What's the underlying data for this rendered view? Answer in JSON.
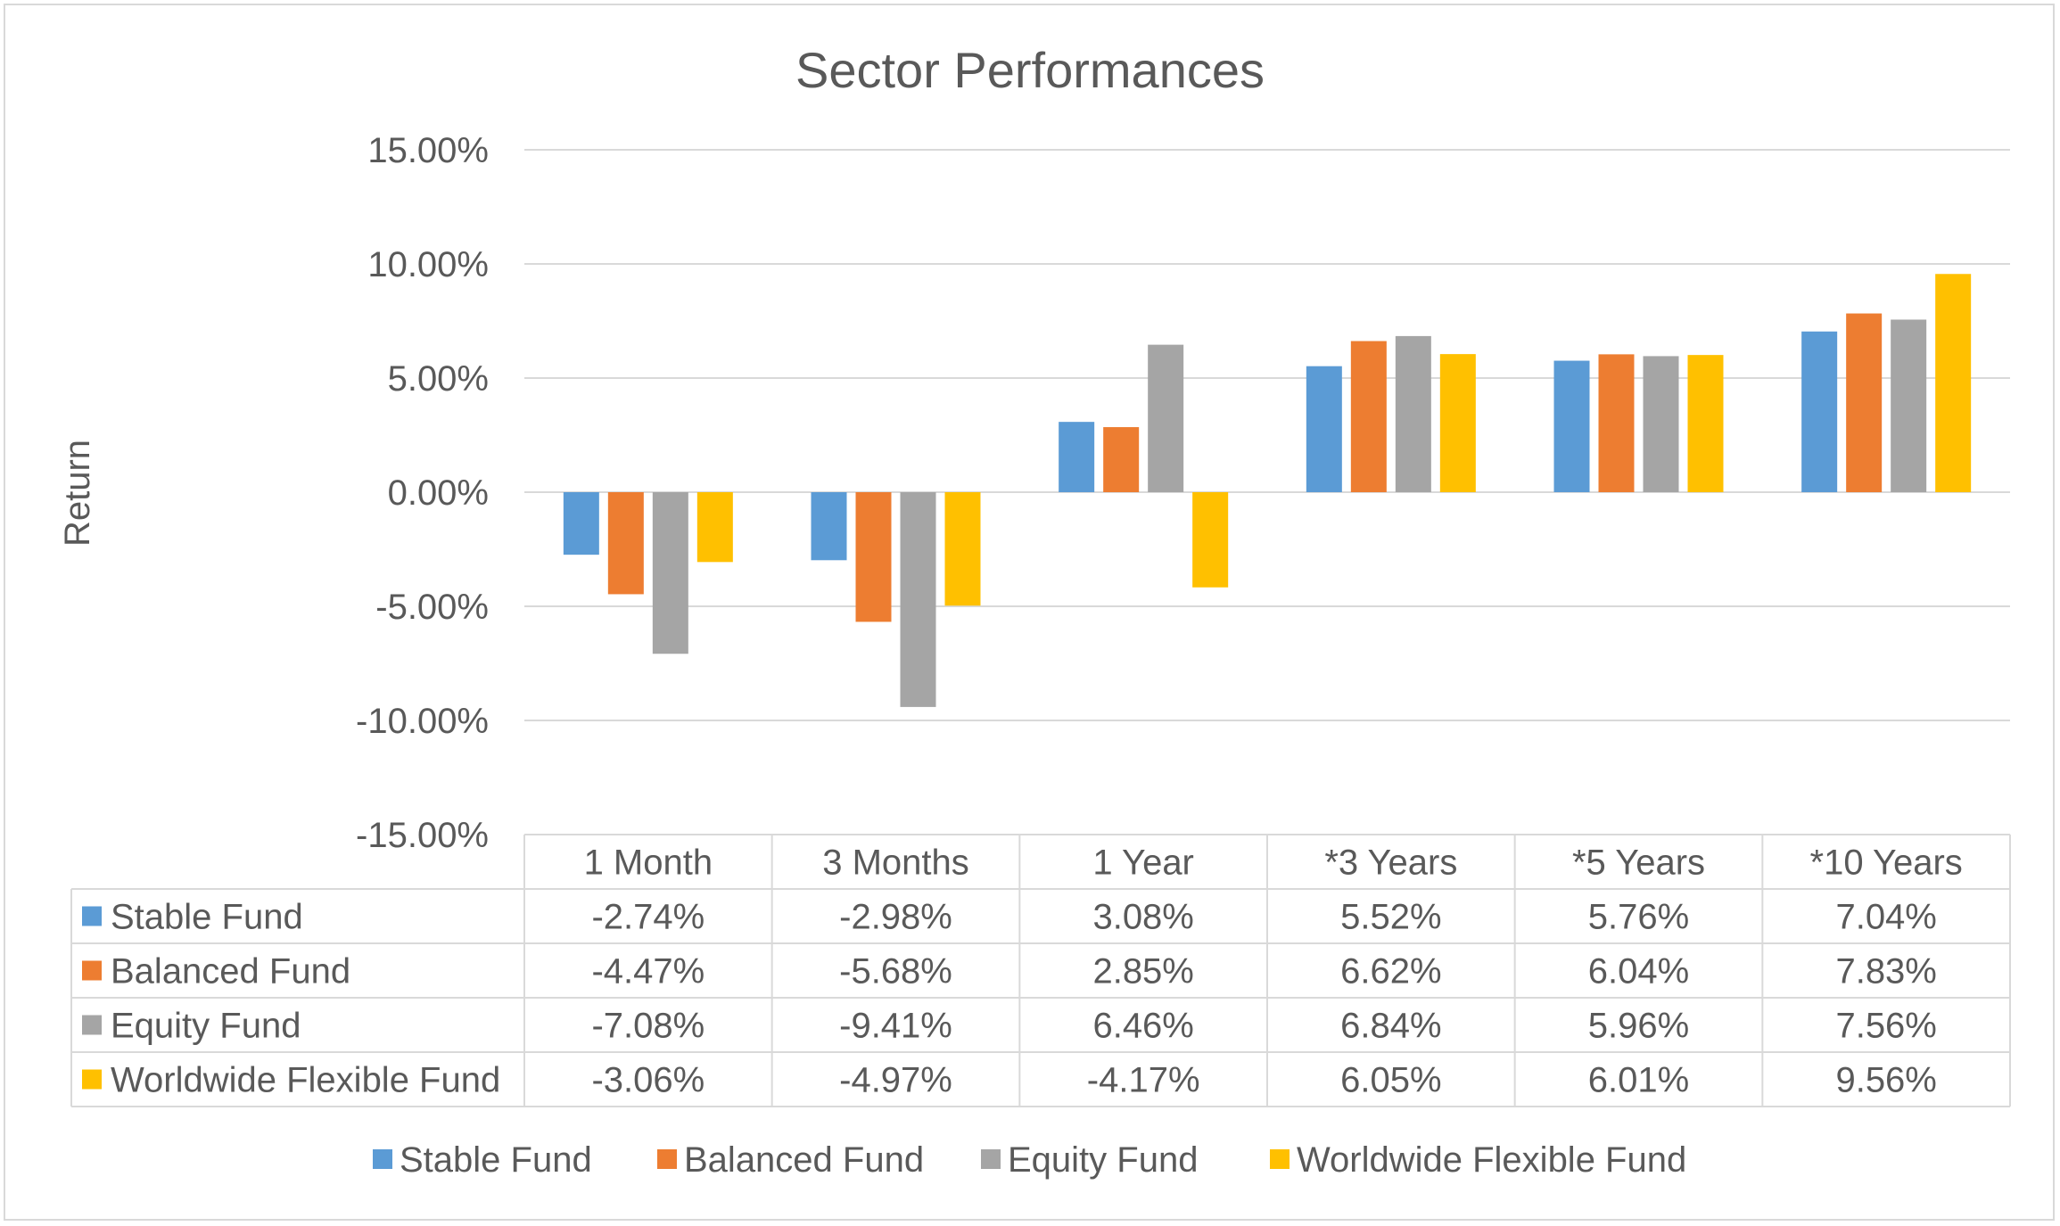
{
  "chart_data": {
    "type": "bar",
    "title": "Sector Performances",
    "xlabel": "",
    "ylabel": "Return",
    "ylim": [
      -15,
      15
    ],
    "yticks": [
      15,
      10,
      5,
      0,
      -5,
      -10,
      -15
    ],
    "ytick_labels": [
      "15.00%",
      "10.00%",
      "5.00%",
      "0.00%",
      "-5.00%",
      "-10.00%",
      "-15.00%"
    ],
    "grid": true,
    "legend_position": "bottom",
    "data_table": true,
    "categories": [
      "1 Month",
      "3 Months",
      "1 Year",
      "*3 Years",
      "*5 Years",
      "*10 Years"
    ],
    "series": [
      {
        "name": "Stable Fund",
        "color": "#5b9bd5",
        "values": [
          -2.74,
          -2.98,
          3.08,
          5.52,
          5.76,
          7.04
        ],
        "labels": [
          "-2.74%",
          "-2.98%",
          "3.08%",
          "5.52%",
          "5.76%",
          "7.04%"
        ]
      },
      {
        "name": "Balanced Fund",
        "color": "#ed7d31",
        "values": [
          -4.47,
          -5.68,
          2.85,
          6.62,
          6.04,
          7.83
        ],
        "labels": [
          "-4.47%",
          "-5.68%",
          "2.85%",
          "6.62%",
          "6.04%",
          "7.83%"
        ]
      },
      {
        "name": "Equity Fund",
        "color": "#a5a5a5",
        "values": [
          -7.08,
          -9.41,
          6.46,
          6.84,
          5.96,
          7.56
        ],
        "labels": [
          "-7.08%",
          "-9.41%",
          "6.46%",
          "6.84%",
          "5.96%",
          "7.56%"
        ]
      },
      {
        "name": "Worldwide Flexible Fund",
        "color": "#ffc000",
        "values": [
          -3.06,
          -4.97,
          -4.17,
          6.05,
          6.01,
          9.56
        ],
        "labels": [
          "-3.06%",
          "-4.97%",
          "-4.17%",
          "6.05%",
          "6.01%",
          "9.56%"
        ]
      }
    ]
  }
}
